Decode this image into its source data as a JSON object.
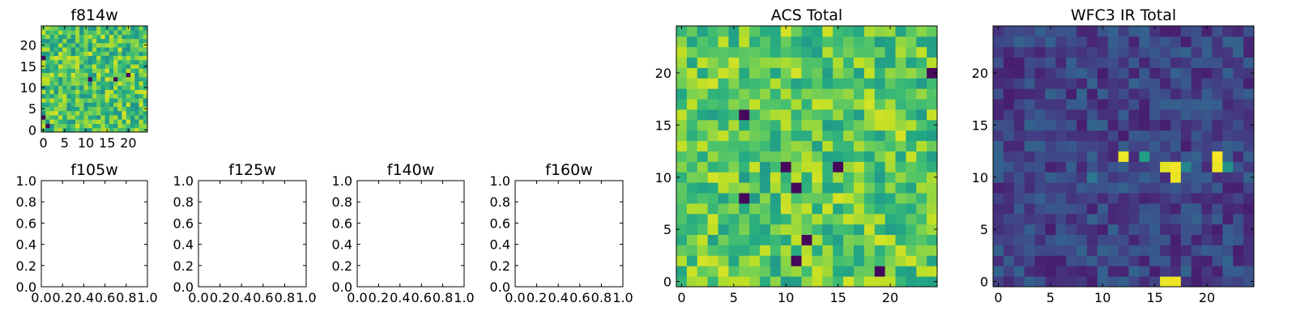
{
  "figure": {
    "background": "#ffffff",
    "colormap": "viridis"
  },
  "chart_data": [
    {
      "id": "f814w",
      "type": "heatmap",
      "title": "f814w",
      "xlim": [
        -0.5,
        24.5
      ],
      "ylim": [
        -0.5,
        24.5
      ],
      "origin": "lower",
      "xticks": [
        0,
        5,
        10,
        15,
        20
      ],
      "yticks": [
        0,
        5,
        10,
        15,
        20
      ],
      "xtick_labels": [
        "0",
        "5",
        "10",
        "15",
        "20"
      ],
      "ytick_labels": [
        "0",
        "5",
        "10",
        "15",
        "20"
      ],
      "rows": 25,
      "cols": 25,
      "value_range": [
        0,
        1
      ],
      "seed": 814,
      "base": 0.72,
      "spread": 0.22,
      "dark_pixels": 6
    },
    {
      "id": "f105w",
      "type": "empty",
      "title": "f105w",
      "xlim": [
        0,
        1
      ],
      "ylim": [
        0,
        1
      ],
      "xticks": [
        0,
        0.2,
        0.4,
        0.6,
        0.8,
        1.0
      ],
      "yticks": [
        0,
        0.2,
        0.4,
        0.6,
        0.8,
        1.0
      ],
      "xtick_labels": [
        "0.0",
        "0.2",
        "0.4",
        "0.6",
        "0.8",
        "1.0"
      ],
      "ytick_labels": [
        "0.0",
        "0.2",
        "0.4",
        "0.6",
        "0.8",
        "1.0"
      ]
    },
    {
      "id": "f125w",
      "type": "empty",
      "title": "f125w",
      "xlim": [
        0,
        1
      ],
      "ylim": [
        0,
        1
      ],
      "xticks": [
        0,
        0.2,
        0.4,
        0.6,
        0.8,
        1.0
      ],
      "yticks": [
        0,
        0.2,
        0.4,
        0.6,
        0.8,
        1.0
      ],
      "xtick_labels": [
        "0.0",
        "0.2",
        "0.4",
        "0.6",
        "0.8",
        "1.0"
      ],
      "ytick_labels": [
        "0.0",
        "0.2",
        "0.4",
        "0.6",
        "0.8",
        "1.0"
      ]
    },
    {
      "id": "f140w",
      "type": "empty",
      "title": "f140w",
      "xlim": [
        0,
        1
      ],
      "ylim": [
        0,
        1
      ],
      "xticks": [
        0,
        0.2,
        0.4,
        0.6,
        0.8,
        1.0
      ],
      "yticks": [
        0,
        0.2,
        0.4,
        0.6,
        0.8,
        1.0
      ],
      "xtick_labels": [
        "0.0",
        "0.2",
        "0.4",
        "0.6",
        "0.8",
        "1.0"
      ],
      "ytick_labels": [
        "0.0",
        "0.2",
        "0.4",
        "0.6",
        "0.8",
        "1.0"
      ]
    },
    {
      "id": "f160w",
      "type": "empty",
      "title": "f160w",
      "xlim": [
        0,
        1
      ],
      "ylim": [
        0,
        1
      ],
      "xticks": [
        0,
        0.2,
        0.4,
        0.6,
        0.8,
        1.0
      ],
      "yticks": [
        0,
        0.2,
        0.4,
        0.6,
        0.8,
        1.0
      ],
      "xtick_labels": [
        "0.0",
        "0.2",
        "0.4",
        "0.6",
        "0.8",
        "1.0"
      ],
      "ytick_labels": [
        "0.0",
        "0.2",
        "0.4",
        "0.6",
        "0.8",
        "1.0"
      ]
    },
    {
      "id": "acs_total",
      "type": "heatmap",
      "title": "ACS Total",
      "xlim": [
        -0.5,
        24.5
      ],
      "ylim": [
        -0.5,
        24.5
      ],
      "origin": "lower",
      "xticks": [
        0,
        5,
        10,
        15,
        20
      ],
      "yticks": [
        0,
        5,
        10,
        15,
        20
      ],
      "xtick_labels": [
        "0",
        "5",
        "10",
        "15",
        "20"
      ],
      "ytick_labels": [
        "0",
        "5",
        "10",
        "15",
        "20"
      ],
      "rows": 25,
      "cols": 25,
      "value_range": [
        0,
        1
      ],
      "seed": 2718,
      "base": 0.74,
      "spread": 0.2,
      "dark_pixels": 9
    },
    {
      "id": "wfc3_ir_total",
      "type": "heatmap",
      "title": "WFC3 IR Total",
      "xlim": [
        -0.5,
        24.5
      ],
      "ylim": [
        -0.5,
        24.5
      ],
      "origin": "lower",
      "xticks": [
        0,
        5,
        10,
        15,
        20
      ],
      "yticks": [
        0,
        5,
        10,
        15,
        20
      ],
      "xtick_labels": [
        "0",
        "5",
        "10",
        "15",
        "20"
      ],
      "ytick_labels": [
        "0",
        "5",
        "10",
        "15",
        "20"
      ],
      "rows": 25,
      "cols": 25,
      "value_range": [
        0,
        1
      ],
      "seed": 3141,
      "base": 0.2,
      "spread": 0.12,
      "dark_pixels": 0,
      "bright_pixels": [
        {
          "x": 12,
          "y": 12,
          "v": 0.97
        },
        {
          "x": 16,
          "y": 11,
          "v": 0.96
        },
        {
          "x": 17,
          "y": 11,
          "v": 0.98
        },
        {
          "x": 17,
          "y": 10,
          "v": 0.97
        },
        {
          "x": 21,
          "y": 12,
          "v": 0.99
        },
        {
          "x": 21,
          "y": 11,
          "v": 0.97
        },
        {
          "x": 16,
          "y": 0,
          "v": 0.97
        },
        {
          "x": 17,
          "y": 0,
          "v": 0.98
        },
        {
          "x": 14,
          "y": 12,
          "v": 0.55
        },
        {
          "x": 22,
          "y": 11,
          "v": 0.5
        },
        {
          "x": 18,
          "y": 11,
          "v": 0.45
        },
        {
          "x": 9,
          "y": 10,
          "v": 0.4
        }
      ]
    }
  ]
}
